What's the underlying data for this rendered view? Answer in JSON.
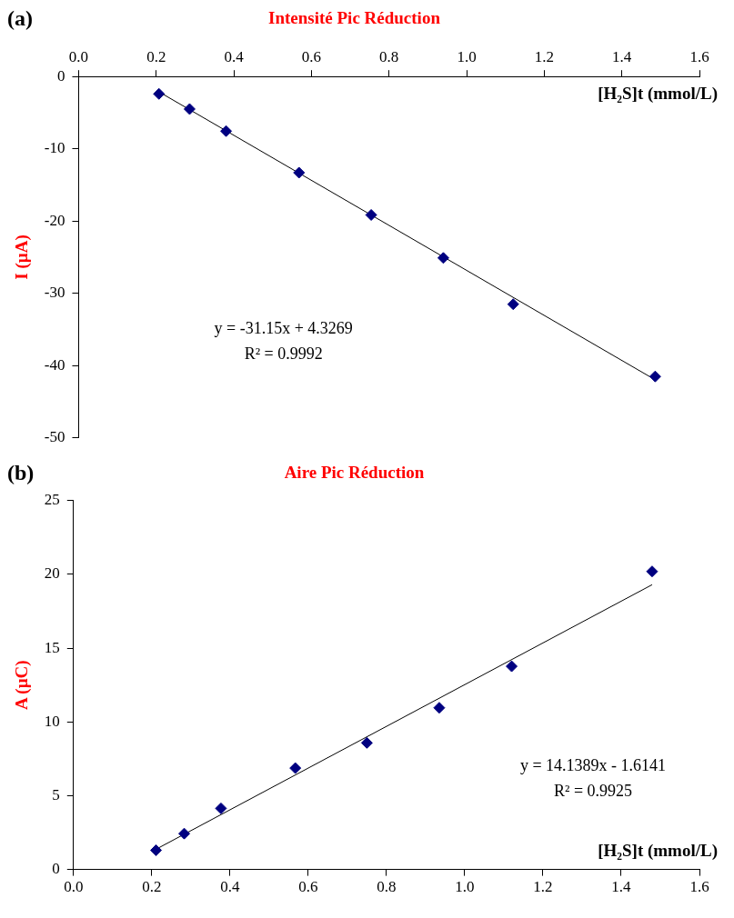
{
  "chart_data": [
    {
      "type": "scatter",
      "title": "Intensité Pic Réduction",
      "xlabel": "[H₂S]t (mmol/L)",
      "ylabel": "I (µA)",
      "annotations": [
        "(a)",
        "y = -31.15x + 4.3269",
        "R² = 0.9992"
      ],
      "xlim": [
        0,
        1.6
      ],
      "xticks": [
        {
          "value": 0,
          "label": "0.0"
        },
        {
          "value": 0.2,
          "label": "0.2"
        },
        {
          "value": 0.4,
          "label": "0.4"
        },
        {
          "value": 0.6,
          "label": "0.6"
        },
        {
          "value": 0.8,
          "label": "0.8"
        },
        {
          "value": 1,
          "label": "1.0"
        },
        {
          "value": 1.2,
          "label": "1.2"
        },
        {
          "value": 1.4,
          "label": "1.4"
        },
        {
          "value": 1.6,
          "label": "1.6"
        }
      ],
      "ylim": [
        -50,
        0
      ],
      "yticks": [
        -50,
        -40,
        -30,
        -20,
        -10,
        0
      ],
      "grid": false,
      "legend": false,
      "marker": "diamond",
      "series": [
        {
          "type": "scatter",
          "color": "#000080",
          "x": [
            0.207,
            0.286,
            0.38,
            0.568,
            0.754,
            0.94,
            1.12,
            1.486
          ],
          "values": [
            -2.4,
            -4.5,
            -7.55,
            -13.3,
            -19.15,
            -25.1,
            -31.5,
            -41.5
          ]
        },
        {
          "type": "line",
          "color": "#000000",
          "marker": "none",
          "line_style": "solid",
          "x": [
            0.207,
            1.486
          ],
          "values": [
            -2.12,
            -41.96
          ]
        }
      ]
    },
    {
      "type": "scatter",
      "title": "Aire Pic Réduction",
      "xlabel": "[H₂S]t (mmol/L)",
      "ylabel": "A (µC)",
      "annotations": [
        "(b)",
        "y = 14.1389x - 1.6141",
        "R² = 0.9925"
      ],
      "xlim": [
        0,
        1.6
      ],
      "xticks": [
        {
          "value": 0,
          "label": "0.0"
        },
        {
          "value": 0.2,
          "label": "0.2"
        },
        {
          "value": 0.4,
          "label": "0.4"
        },
        {
          "value": 0.6,
          "label": "0.6"
        },
        {
          "value": 0.8,
          "label": "0.8"
        },
        {
          "value": 1,
          "label": "1.0"
        },
        {
          "value": 1.2,
          "label": "1.2"
        },
        {
          "value": 1.4,
          "label": "1.4"
        },
        {
          "value": 1.6,
          "label": "1.6"
        }
      ],
      "ylim": [
        0,
        25
      ],
      "yticks": [
        0,
        5,
        10,
        15,
        20,
        25
      ],
      "grid": false,
      "legend": false,
      "marker": "diamond",
      "series": [
        {
          "type": "scatter",
          "color": "#000080",
          "x": [
            0.211,
            0.283,
            0.377,
            0.567,
            0.75,
            0.935,
            1.12,
            1.479
          ],
          "values": [
            1.3,
            2.43,
            4.14,
            6.87,
            8.58,
            10.96,
            13.77,
            20.2
          ]
        },
        {
          "type": "line",
          "color": "#000000",
          "marker": "none",
          "line_style": "solid",
          "x": [
            0.211,
            1.479
          ],
          "values": [
            1.37,
            19.3
          ]
        }
      ]
    }
  ]
}
